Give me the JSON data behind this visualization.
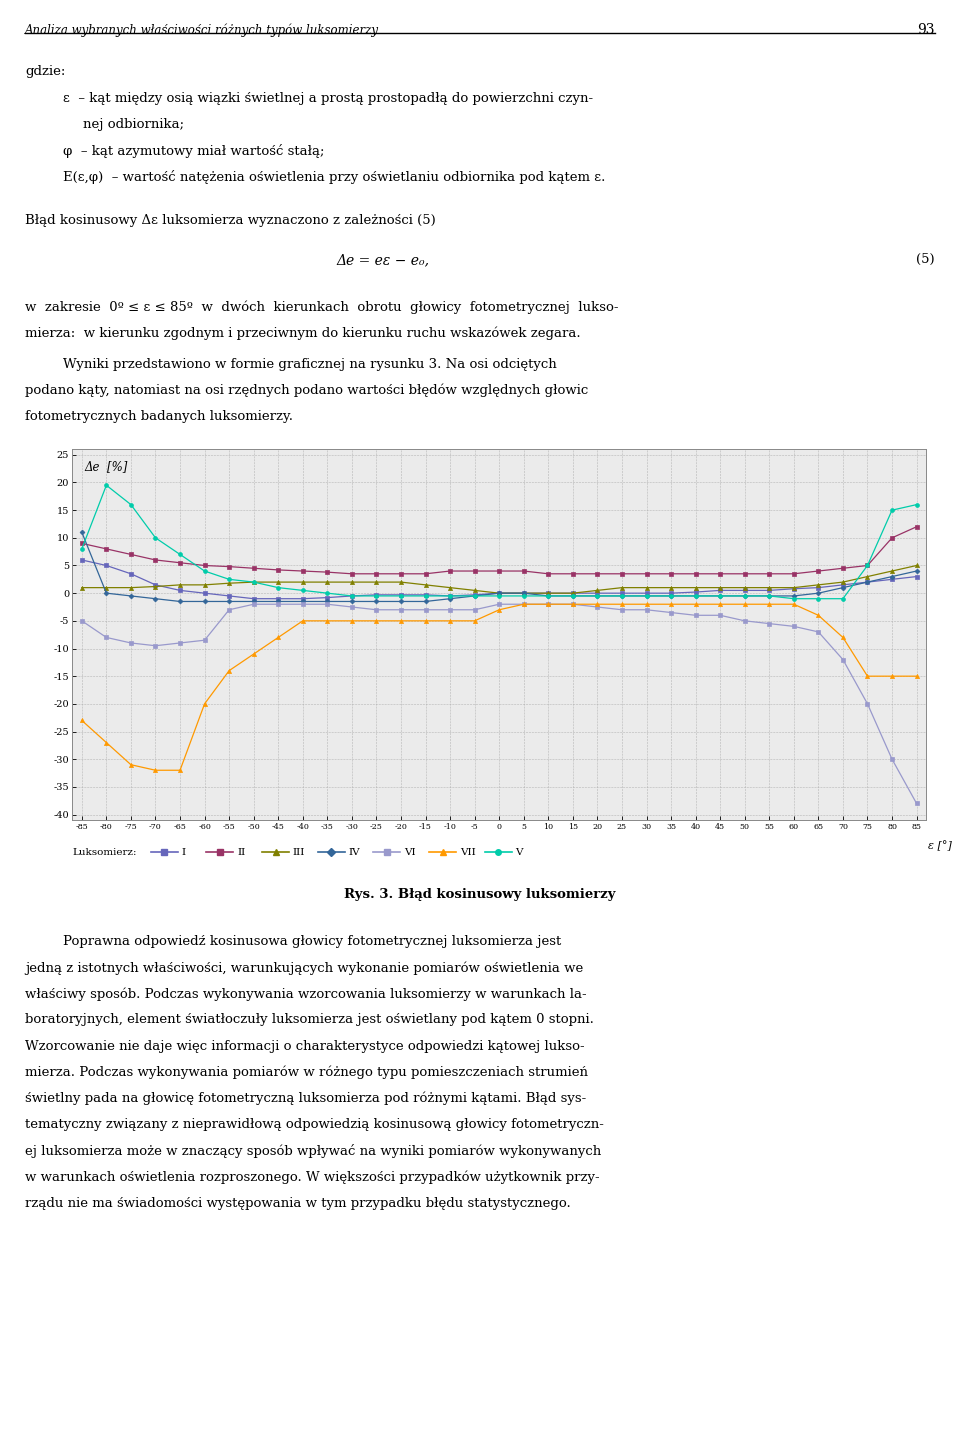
{
  "page_title": "Analiza wybranych właściwości różnych typów luksomierzy",
  "page_number": "93",
  "chart_title": "Rys. 3. Błąd kosinusowy luksomierzy",
  "ylabel": "Δe  [%]",
  "xlabel": "ε [°]",
  "legend_prefix": "Luksomierz:",
  "series_labels": [
    "I",
    "II",
    "III",
    "IV",
    "VI",
    "VII",
    "V"
  ],
  "series_colors": [
    "#6666bb",
    "#993366",
    "#808000",
    "#336699",
    "#9999cc",
    "#ff9900",
    "#00ccaa"
  ],
  "series_markers": [
    "s",
    "s",
    "^",
    "D",
    "s",
    "^",
    "o"
  ],
  "xlim": [
    -87,
    87
  ],
  "ylim": [
    -41,
    26
  ],
  "yticks": [
    -40,
    -35,
    -30,
    -25,
    -20,
    -15,
    -10,
    -5,
    0,
    5,
    10,
    15,
    20,
    25
  ],
  "xticks": [
    -85,
    -80,
    -75,
    -70,
    -65,
    -60,
    -55,
    -50,
    -45,
    -40,
    -35,
    -30,
    -25,
    -20,
    -15,
    -10,
    -5,
    0,
    5,
    10,
    15,
    20,
    25,
    30,
    35,
    40,
    45,
    50,
    55,
    60,
    65,
    70,
    75,
    80,
    85
  ],
  "x_values": [
    -85,
    -80,
    -75,
    -70,
    -65,
    -60,
    -55,
    -50,
    -45,
    -40,
    -35,
    -30,
    -25,
    -20,
    -15,
    -10,
    -5,
    0,
    5,
    10,
    15,
    20,
    25,
    30,
    35,
    40,
    45,
    50,
    55,
    60,
    65,
    70,
    75,
    80,
    85
  ],
  "series_data": {
    "I": [
      6.0,
      5.0,
      3.5,
      1.5,
      0.5,
      0.0,
      -0.5,
      -1.0,
      -1.0,
      -1.0,
      -0.8,
      -0.5,
      -0.3,
      -0.3,
      -0.3,
      -0.5,
      -0.3,
      0.0,
      0.0,
      0.0,
      0.0,
      0.0,
      0.0,
      0.0,
      0.0,
      0.2,
      0.5,
      0.5,
      0.5,
      0.8,
      1.0,
      1.5,
      2.0,
      2.5,
      3.0
    ],
    "II": [
      9.0,
      8.0,
      7.0,
      6.0,
      5.5,
      5.0,
      4.8,
      4.5,
      4.2,
      4.0,
      3.8,
      3.5,
      3.5,
      3.5,
      3.5,
      4.0,
      4.0,
      4.0,
      4.0,
      3.5,
      3.5,
      3.5,
      3.5,
      3.5,
      3.5,
      3.5,
      3.5,
      3.5,
      3.5,
      3.5,
      4.0,
      4.5,
      5.0,
      10.0,
      12.0
    ],
    "III": [
      1.0,
      1.0,
      1.0,
      1.2,
      1.5,
      1.5,
      1.8,
      2.0,
      2.0,
      2.0,
      2.0,
      2.0,
      2.0,
      2.0,
      1.5,
      1.0,
      0.5,
      0.0,
      0.0,
      0.0,
      0.0,
      0.5,
      1.0,
      1.0,
      1.0,
      1.0,
      1.0,
      1.0,
      1.0,
      1.0,
      1.5,
      2.0,
      3.0,
      4.0,
      5.0
    ],
    "IV": [
      11.0,
      0.0,
      -0.5,
      -1.0,
      -1.5,
      -1.5,
      -1.5,
      -1.5,
      -1.5,
      -1.5,
      -1.5,
      -1.5,
      -1.5,
      -1.5,
      -1.5,
      -1.0,
      -0.5,
      0.0,
      0.0,
      -0.5,
      -0.5,
      -0.5,
      -0.5,
      -0.5,
      -0.5,
      -0.5,
      -0.5,
      -0.5,
      -0.5,
      -0.5,
      0.0,
      1.0,
      2.0,
      3.0,
      4.0
    ],
    "VI": [
      -5.0,
      -8.0,
      -9.0,
      -9.5,
      -9.0,
      -8.5,
      -3.0,
      -2.0,
      -2.0,
      -2.0,
      -2.0,
      -2.5,
      -3.0,
      -3.0,
      -3.0,
      -3.0,
      -3.0,
      -2.0,
      -2.0,
      -2.0,
      -2.0,
      -2.5,
      -3.0,
      -3.0,
      -3.5,
      -4.0,
      -4.0,
      -5.0,
      -5.5,
      -6.0,
      -7.0,
      -12.0,
      -20.0,
      -30.0,
      -38.0
    ],
    "VII": [
      -23.0,
      -27.0,
      -31.0,
      -32.0,
      -32.0,
      -20.0,
      -14.0,
      -11.0,
      -8.0,
      -5.0,
      -5.0,
      -5.0,
      -5.0,
      -5.0,
      -5.0,
      -5.0,
      -5.0,
      -3.0,
      -2.0,
      -2.0,
      -2.0,
      -2.0,
      -2.0,
      -2.0,
      -2.0,
      -2.0,
      -2.0,
      -2.0,
      -2.0,
      -2.0,
      -4.0,
      -8.0,
      -15.0,
      -15.0,
      -15.0
    ],
    "V": [
      8.0,
      19.5,
      16.0,
      10.0,
      7.0,
      4.0,
      2.5,
      2.0,
      1.0,
      0.5,
      0.0,
      -0.5,
      -0.5,
      -0.5,
      -0.5,
      -0.5,
      -0.5,
      -0.5,
      -0.5,
      -0.5,
      -0.5,
      -0.5,
      -0.5,
      -0.5,
      -0.5,
      -0.5,
      -0.5,
      -0.5,
      -0.5,
      -1.0,
      -1.0,
      -1.0,
      5.0,
      15.0,
      16.0
    ]
  },
  "header_text": "Analiza wybranych właściwości różnych typów luksomierzy",
  "body_texts": [
    "gdzie:",
    "ε  – kąt między osią wiązki świetlnej a prostą prostopadłą do powierzchni czyn-",
    "      nej odbiornika;",
    "φ  – kąt azymutowy miał wartość stałą;",
    "E(ε,φ)  – wartość natężenia oświetlenia przy oświetlaniu odbiornika pod kątem ε.",
    "",
    "Błąd kosinusowy Δe luksomierza wyznaczono z zależności (5)",
    "",
    "                     Δe = eε – e₀,                                                                              (5)",
    "",
    "w  zakresie  0º ≤ ε ≤ 85º  w  dwóch  kierunkach  obrotu  głowicy  fotometrycznej  lukso-",
    "mierza:  w kierunku zgodnym i przeciwnym do kierunku ruchu wskazówek zegara.",
    "     Wyniki przedstawiono w formie graficznej na rysunku 3. Na osi odciętych",
    "podano kąty, natomiast na osi rzędnych podano wartości błędów względnych głowic",
    "fotometrycznych badanych luksomierzy."
  ],
  "bottom_texts": [
    "     Poprawna odpowiedź kosinusowa głowicy fotometrycznej luksomierza jest",
    "jedną z istotnych właściwości, warunkujących wykonanie pomiarów oświetlenia we",
    "właściwy sposób. Podczas wykonywania wzorcowania luksomierzy w warunkach la-",
    "boratoryjnych, element światłoczuły luksomierza jest oświetlany pod kątem 0 stopni.",
    "Wzorcowanie nie daje więc informacji o charakterystyce odpowiedzi kątowej lukso-",
    "mierza. Podczas wykonywania pomiarów w różnego typu pomieszczeniach strumień",
    "świetlny pada na głowicę fotometryczną luksomierza pod różnymi kątami. Błąd sys-",
    "tematyczny związany z nieprawidłową odpowiedzią kosinusową głowicy fotometryczn-",
    "ej luksomierza może w znacząy sposób wpływać na wyniki pomiarów wykonywanych",
    "w warunkach oświetlenia rozproszonego. W większości przypadków użytkownik przy-",
    "rządu nie ma świadomości występowania w tym przypadku błędu statystycznego."
  ]
}
